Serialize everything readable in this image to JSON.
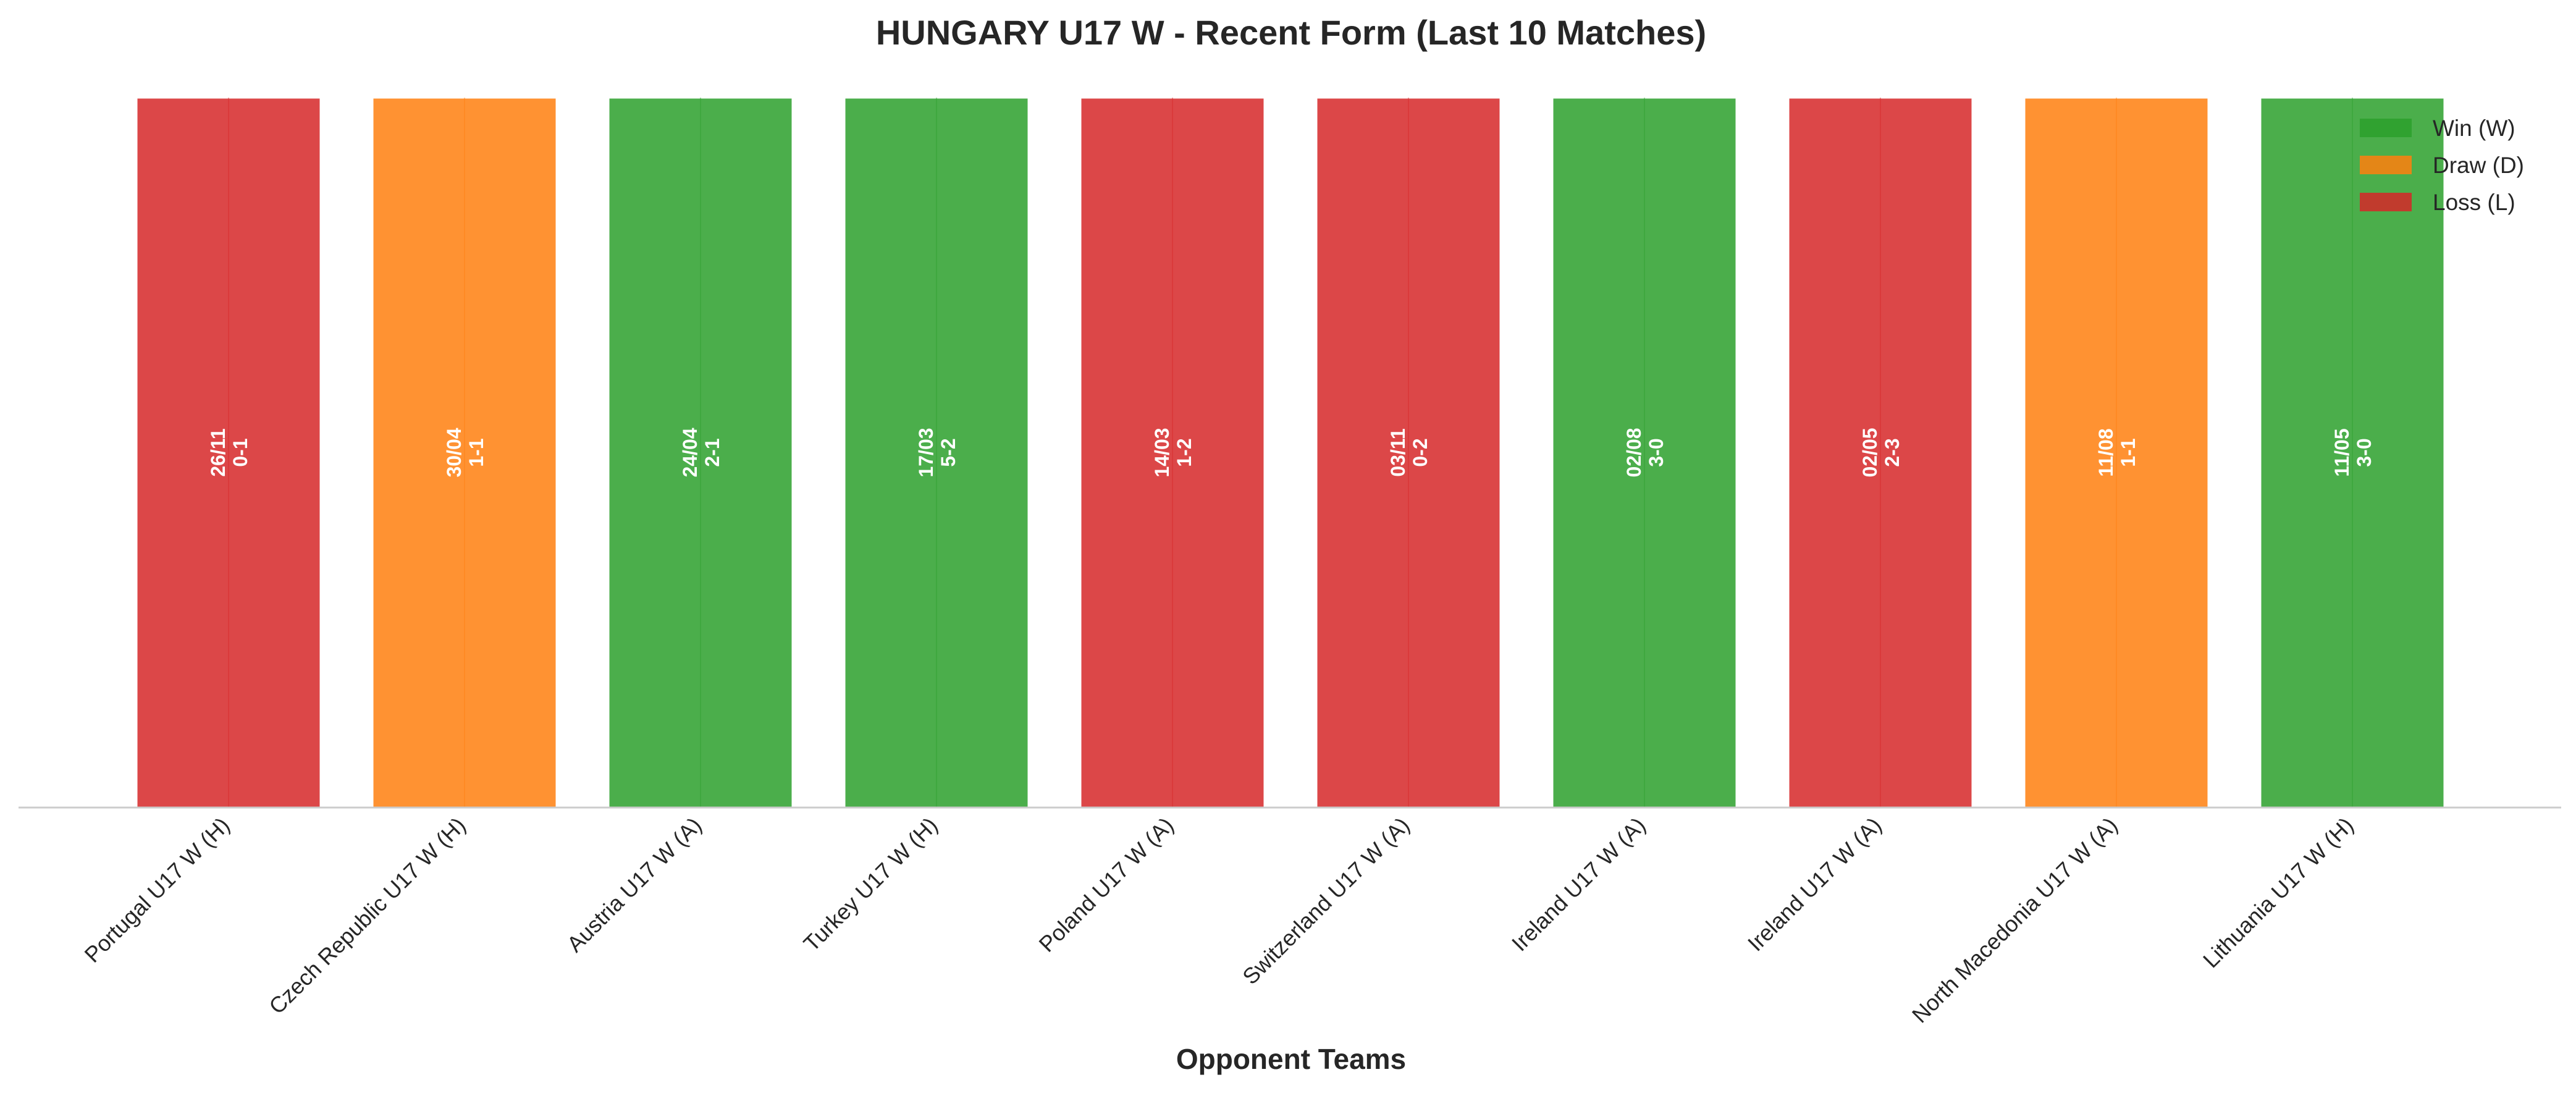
{
  "chart_data": {
    "type": "bar",
    "title": "HUNGARY U17 W - Recent Form (Last 10 Matches)",
    "xlabel": "Opponent Teams",
    "ylabel": "",
    "categories": [
      "Portugal U17 W (H)",
      "Czech Republic U17 W (H)",
      "Austria U17 W (A)",
      "Turkey U17 W (H)",
      "Poland U17 W (A)",
      "Switzerland U17 W (A)",
      "Ireland U17 W (A)",
      "Ireland U17 W (A)",
      "North Macedonia U17 W (A)",
      "Lithuania U17 W (H)"
    ],
    "values": [
      1,
      1,
      1,
      1,
      1,
      1,
      1,
      1,
      1,
      1
    ],
    "results": [
      "L",
      "D",
      "W",
      "W",
      "L",
      "L",
      "W",
      "L",
      "D",
      "W"
    ],
    "dates": [
      "26/11",
      "30/04",
      "24/04",
      "17/03",
      "14/03",
      "03/11",
      "02/08",
      "02/05",
      "11/08",
      "11/05"
    ],
    "scores": [
      "0-1",
      "1-1",
      "2-1",
      "5-2",
      "1-2",
      "0-2",
      "3-0",
      "2-3",
      "1-1",
      "3-0"
    ],
    "result_colors": {
      "W": "#2ca02c",
      "D": "#ff7f0e",
      "L": "#d62728"
    },
    "legend": [
      {
        "key": "W",
        "label": "Win (W)"
      },
      {
        "key": "D",
        "label": "Draw (D)"
      },
      {
        "key": "L",
        "label": "Loss (L)"
      }
    ],
    "legend_position": "top-right",
    "ylim": [
      0,
      1
    ],
    "grid": false,
    "bar_opacity": 0.85
  }
}
